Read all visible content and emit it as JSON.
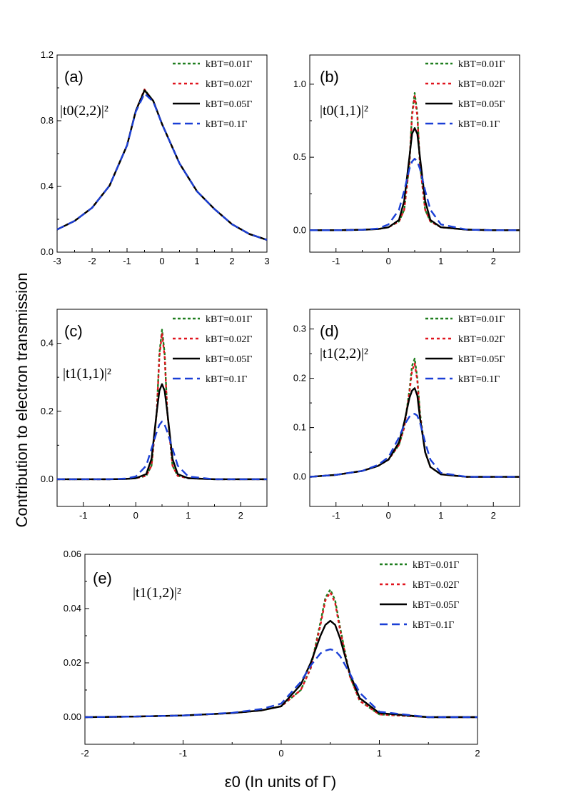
{
  "figure": {
    "ylabel": "Contribution to electron transmission",
    "xlabel": "ε0 (In units of Γ)"
  },
  "legend_colors": [
    "#1e7d1e",
    "#e0141e",
    "#000000",
    "#1a3fd6"
  ],
  "chart_data": [
    {
      "type": "line",
      "panel": "(a)",
      "quantity": "|t0(2,2)|²",
      "xlim": [
        -3,
        3
      ],
      "ylim": [
        0,
        1.2
      ],
      "xticks": [
        -3,
        -2,
        -1,
        0,
        1,
        2,
        3
      ],
      "yticks": [
        0.0,
        0.4,
        0.8,
        1.2
      ],
      "ytick_labels": [
        "0.0",
        "0.4",
        "0.8",
        "1.2"
      ],
      "x": [
        -3,
        -2.5,
        -2,
        -1.5,
        -1,
        -0.75,
        -0.5,
        -0.25,
        0,
        0.5,
        1,
        1.5,
        2,
        2.5,
        3
      ],
      "series": [
        {
          "name": "kBT=0.01Γ",
          "values": [
            0.138,
            0.19,
            0.27,
            0.405,
            0.65,
            0.86,
            0.99,
            0.92,
            0.78,
            0.54,
            0.37,
            0.262,
            0.17,
            0.11,
            0.075
          ]
        },
        {
          "name": "kBT=0.02Γ",
          "values": [
            0.138,
            0.19,
            0.27,
            0.405,
            0.65,
            0.86,
            0.99,
            0.92,
            0.78,
            0.54,
            0.37,
            0.262,
            0.17,
            0.11,
            0.075
          ]
        },
        {
          "name": "kBT=0.05Γ",
          "values": [
            0.138,
            0.19,
            0.27,
            0.405,
            0.65,
            0.86,
            0.985,
            0.92,
            0.78,
            0.54,
            0.37,
            0.262,
            0.17,
            0.11,
            0.075
          ]
        },
        {
          "name": "kBT=0.1Γ",
          "values": [
            0.138,
            0.19,
            0.27,
            0.405,
            0.65,
            0.855,
            0.965,
            0.915,
            0.78,
            0.54,
            0.37,
            0.262,
            0.17,
            0.11,
            0.075
          ]
        }
      ]
    },
    {
      "type": "line",
      "panel": "(b)",
      "quantity": "|t0(1,1)|²",
      "xlim": [
        -1.5,
        2.5
      ],
      "ylim": [
        -0.15,
        1.2
      ],
      "xticks": [
        -1,
        0,
        1,
        2
      ],
      "yticks": [
        0.0,
        0.5,
        1.0
      ],
      "ytick_labels": [
        "0.0",
        "0.5",
        "1.0"
      ],
      "x": [
        -1.5,
        -1,
        -0.5,
        -0.2,
        0,
        0.2,
        0.3,
        0.4,
        0.45,
        0.5,
        0.55,
        0.6,
        0.7,
        0.8,
        1,
        1.5,
        2,
        2.5
      ],
      "series": [
        {
          "name": "kBT=0.01Γ",
          "values": [
            0.0,
            0.0,
            0.003,
            0.008,
            0.02,
            0.06,
            0.14,
            0.45,
            0.8,
            0.94,
            0.8,
            0.45,
            0.14,
            0.06,
            0.02,
            0.004,
            0.0,
            0.0
          ]
        },
        {
          "name": "kBT=0.02Γ",
          "values": [
            0.0,
            0.0,
            0.003,
            0.008,
            0.02,
            0.06,
            0.14,
            0.45,
            0.78,
            0.92,
            0.78,
            0.45,
            0.14,
            0.06,
            0.02,
            0.004,
            0.0,
            0.0
          ]
        },
        {
          "name": "kBT=0.05Γ",
          "values": [
            0.0,
            0.0,
            0.003,
            0.008,
            0.02,
            0.07,
            0.2,
            0.5,
            0.66,
            0.7,
            0.66,
            0.5,
            0.2,
            0.07,
            0.02,
            0.004,
            0.0,
            0.0
          ]
        },
        {
          "name": "kBT=0.1Γ",
          "values": [
            0.0,
            0.0,
            0.003,
            0.012,
            0.04,
            0.14,
            0.27,
            0.42,
            0.47,
            0.49,
            0.47,
            0.42,
            0.27,
            0.14,
            0.04,
            0.004,
            0.0,
            0.0
          ]
        }
      ]
    },
    {
      "type": "line",
      "panel": "(c)",
      "quantity": "|t1(1,1)|²",
      "xlim": [
        -1.5,
        2.5
      ],
      "ylim": [
        -0.08,
        0.5
      ],
      "xticks": [
        -1,
        0,
        1,
        2
      ],
      "yticks": [
        0.0,
        0.2,
        0.4
      ],
      "ytick_labels": [
        "0.0",
        "0.2",
        "0.4"
      ],
      "x": [
        -1.5,
        -1,
        -0.5,
        -0.2,
        0,
        0.2,
        0.3,
        0.4,
        0.45,
        0.5,
        0.55,
        0.6,
        0.7,
        0.8,
        1,
        1.5,
        2,
        2.5
      ],
      "series": [
        {
          "name": "kBT=0.01Γ",
          "values": [
            0.0,
            0.0,
            0.0,
            0.001,
            0.003,
            0.01,
            0.04,
            0.2,
            0.37,
            0.44,
            0.37,
            0.2,
            0.04,
            0.01,
            0.003,
            0.0,
            0.0,
            0.0
          ]
        },
        {
          "name": "kBT=0.02Γ",
          "values": [
            0.0,
            0.0,
            0.0,
            0.001,
            0.003,
            0.01,
            0.04,
            0.2,
            0.36,
            0.43,
            0.36,
            0.2,
            0.04,
            0.01,
            0.003,
            0.0,
            0.0,
            0.0
          ]
        },
        {
          "name": "kBT=0.05Γ",
          "values": [
            0.0,
            0.0,
            0.0,
            0.001,
            0.003,
            0.015,
            0.06,
            0.2,
            0.26,
            0.28,
            0.26,
            0.2,
            0.06,
            0.015,
            0.003,
            0.0,
            0.0,
            0.0
          ]
        },
        {
          "name": "kBT=0.1Γ",
          "values": [
            0.0,
            0.0,
            0.0,
            0.002,
            0.008,
            0.04,
            0.09,
            0.14,
            0.16,
            0.17,
            0.16,
            0.14,
            0.09,
            0.04,
            0.008,
            0.0,
            0.0,
            0.0
          ]
        }
      ]
    },
    {
      "type": "line",
      "panel": "(d)",
      "quantity": "|t1(2,2)|²",
      "xlim": [
        -1.5,
        2.5
      ],
      "ylim": [
        -0.06,
        0.34
      ],
      "xticks": [
        -1,
        0,
        1,
        2
      ],
      "yticks": [
        0.0,
        0.1,
        0.2,
        0.3
      ],
      "ytick_labels": [
        "0.0",
        "0.1",
        "0.2",
        "0.3"
      ],
      "x": [
        -1.5,
        -1,
        -0.5,
        -0.2,
        0,
        0.2,
        0.3,
        0.4,
        0.45,
        0.5,
        0.55,
        0.6,
        0.7,
        0.8,
        1,
        1.5,
        2,
        2.5
      ],
      "series": [
        {
          "name": "kBT=0.01Γ",
          "values": [
            0.0,
            0.004,
            0.012,
            0.022,
            0.035,
            0.065,
            0.1,
            0.175,
            0.225,
            0.24,
            0.2,
            0.13,
            0.05,
            0.02,
            0.005,
            0.0,
            0.0,
            0.0
          ]
        },
        {
          "name": "kBT=0.02Γ",
          "values": [
            0.0,
            0.004,
            0.012,
            0.022,
            0.035,
            0.065,
            0.1,
            0.17,
            0.215,
            0.23,
            0.195,
            0.125,
            0.05,
            0.02,
            0.005,
            0.0,
            0.0,
            0.0
          ]
        },
        {
          "name": "kBT=0.05Γ",
          "values": [
            0.0,
            0.004,
            0.012,
            0.022,
            0.035,
            0.07,
            0.11,
            0.16,
            0.175,
            0.18,
            0.165,
            0.12,
            0.05,
            0.02,
            0.005,
            0.0,
            0.0,
            0.0
          ]
        },
        {
          "name": "kBT=0.1Γ",
          "values": [
            0.0,
            0.004,
            0.012,
            0.024,
            0.04,
            0.08,
            0.105,
            0.122,
            0.127,
            0.128,
            0.124,
            0.11,
            0.07,
            0.035,
            0.008,
            0.0,
            0.0,
            0.0
          ]
        }
      ]
    },
    {
      "type": "line",
      "panel": "(e)",
      "quantity": "|t1(1,2)|²",
      "xlim": [
        -2,
        2
      ],
      "ylim": [
        -0.01,
        0.06
      ],
      "xticks": [
        -2,
        -1,
        0,
        1,
        2
      ],
      "yticks": [
        0.0,
        0.02,
        0.04,
        0.06
      ],
      "ytick_labels": [
        "0.00",
        "0.02",
        "0.04",
        "0.06"
      ],
      "x": [
        -2,
        -1.5,
        -1,
        -0.5,
        -0.2,
        0,
        0.2,
        0.3,
        0.4,
        0.45,
        0.5,
        0.55,
        0.6,
        0.7,
        0.8,
        1,
        1.5,
        2
      ],
      "series": [
        {
          "name": "kBT=0.01Γ",
          "values": [
            0.0,
            0.0002,
            0.0006,
            0.0015,
            0.0025,
            0.004,
            0.01,
            0.018,
            0.035,
            0.044,
            0.047,
            0.043,
            0.033,
            0.015,
            0.006,
            0.001,
            0.0,
            0.0
          ]
        },
        {
          "name": "kBT=0.02Γ",
          "values": [
            0.0,
            0.0002,
            0.0006,
            0.0015,
            0.0025,
            0.004,
            0.01,
            0.018,
            0.034,
            0.043,
            0.046,
            0.042,
            0.032,
            0.015,
            0.006,
            0.001,
            0.0,
            0.0
          ]
        },
        {
          "name": "kBT=0.05Γ",
          "values": [
            0.0,
            0.0002,
            0.0006,
            0.0015,
            0.0025,
            0.004,
            0.012,
            0.02,
            0.03,
            0.034,
            0.0355,
            0.034,
            0.029,
            0.016,
            0.007,
            0.0015,
            0.0,
            0.0
          ]
        },
        {
          "name": "kBT=0.1Γ",
          "values": [
            0.0,
            0.0002,
            0.0006,
            0.0016,
            0.003,
            0.005,
            0.013,
            0.019,
            0.0235,
            0.0245,
            0.025,
            0.0245,
            0.0225,
            0.016,
            0.009,
            0.002,
            0.0,
            0.0
          ]
        }
      ]
    }
  ]
}
